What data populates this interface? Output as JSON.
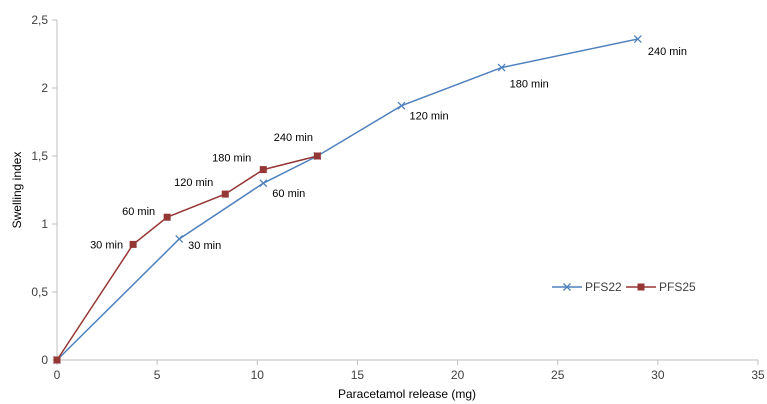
{
  "chart_data": {
    "type": "line",
    "xlabel": "Paracetamol release (mg)",
    "ylabel": "Swelling index",
    "xlim": [
      0,
      35
    ],
    "ylim": [
      0,
      2.5
    ],
    "x_ticks": [
      "0",
      "5",
      "10",
      "15",
      "20",
      "25",
      "30",
      "35"
    ],
    "y_ticks": [
      "0",
      "0,5",
      "1",
      "1,5",
      "2",
      "2,5"
    ],
    "grid": false,
    "legend_position": "right",
    "series": [
      {
        "name": "PFS22",
        "color": "#4f81bd",
        "marker": "x",
        "x": [
          0,
          6.1,
          10.3,
          13.0,
          17.2,
          22.2,
          29.0
        ],
        "y": [
          0,
          0.89,
          1.3,
          1.5,
          1.87,
          2.15,
          2.36
        ],
        "labels": [
          "",
          "30 min",
          "60 min",
          "",
          "120 min",
          "180 min",
          "240 min"
        ]
      },
      {
        "name": "PFS25",
        "color": "#953735",
        "marker": "square",
        "x": [
          0,
          3.8,
          5.5,
          8.4,
          10.3,
          13.0
        ],
        "y": [
          0,
          0.85,
          1.05,
          1.22,
          1.4,
          1.5
        ],
        "labels": [
          "",
          "30 min",
          "60 min",
          "120 min",
          "180 min",
          "240 min"
        ]
      }
    ]
  }
}
